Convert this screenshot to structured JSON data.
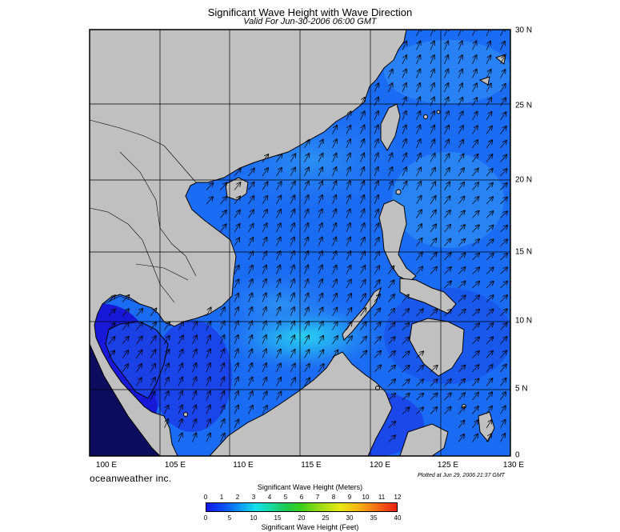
{
  "header": {
    "title": "Significant Wave Height with Wave Direction",
    "subtitle": "Valid For Jun-30-2006 06:00 GMT"
  },
  "map": {
    "lon_labels": [
      "100 E",
      "105 E",
      "110 E",
      "115 E",
      "120 E",
      "125 E",
      "130 E"
    ],
    "lat_labels": [
      "30 N",
      "25 N",
      "20 N",
      "15 N",
      "10 N",
      "5 N",
      "0"
    ],
    "lon_range": [
      99,
      130
    ],
    "lat_range": [
      0,
      30
    ],
    "land_color": "#c0c0c0",
    "sea_color_low": "#1a1ae6",
    "sea_color_mid": "#1a6cf5",
    "sea_color_high": "#28b4f0",
    "arrow_direction": "toward north-east",
    "grid": true
  },
  "footer": {
    "brand": "oceanweather inc.",
    "plotted": "Plotted at Jun 29, 2006 21:37 GMT"
  },
  "legend": {
    "title_meters": "Significant Wave Height (Meters)",
    "title_feet": "Significant Wave Height (Feet)",
    "meters_ticks": [
      "0",
      "1",
      "2",
      "3",
      "4",
      "5",
      "6",
      "7",
      "8",
      "9",
      "10",
      "11",
      "12"
    ],
    "feet_ticks": [
      "0",
      "5",
      "10",
      "15",
      "20",
      "25",
      "30",
      "35",
      "40"
    ]
  }
}
